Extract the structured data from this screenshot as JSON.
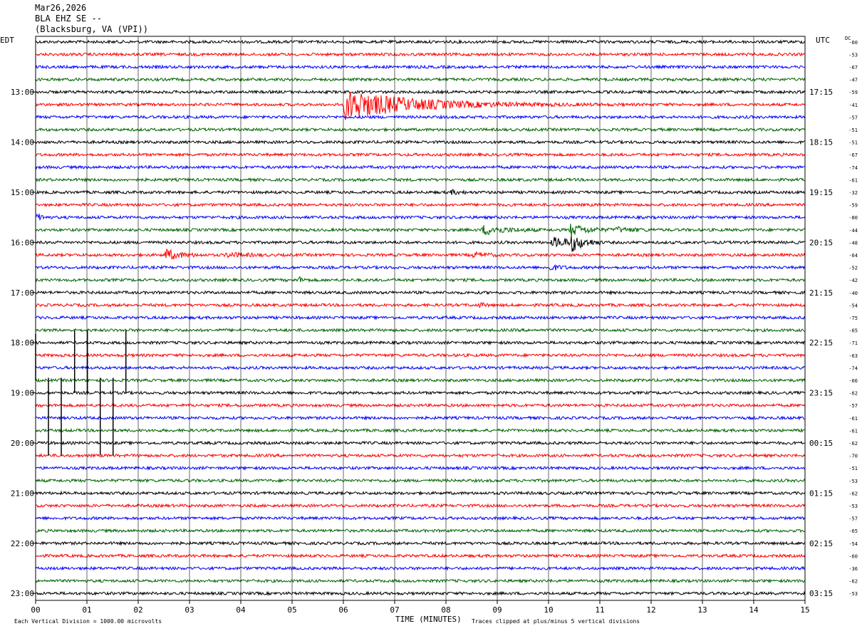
{
  "header": {
    "date": "Mar26,2026",
    "station": "BLA EHZ SE --",
    "location": "(Blacksburg, VA (VPI))"
  },
  "left_tz": "EDT",
  "right_tz": "UTC",
  "dc_label": "DC",
  "footer": {
    "scale_note": "Each Vertical Division = 1000.00 microvolts",
    "xlabel": "TIME (MINUTES)",
    "clip_note": "Traces clipped at plus/minus 5 vertical divisions"
  },
  "colors": {
    "trace_cycle": [
      "#000000",
      "#ff0000",
      "#0000ff",
      "#006400"
    ],
    "grid": "#000000"
  },
  "chart_data": {
    "type": "line",
    "title": "",
    "xlabel": "TIME (MINUTES)",
    "xlim": [
      0,
      15
    ],
    "x_ticks": [
      "00",
      "01",
      "02",
      "03",
      "04",
      "05",
      "06",
      "07",
      "08",
      "09",
      "10",
      "11",
      "12",
      "13",
      "14",
      "15"
    ],
    "rows_per_hour": 4,
    "left_hour_labels": [
      "13:00",
      "14:00",
      "15:00",
      "16:00",
      "17:00",
      "18:00",
      "19:00",
      "20:00",
      "21:00",
      "22:00",
      "23:00"
    ],
    "left_hour_label_rows": [
      4,
      8,
      12,
      16,
      20,
      24,
      28,
      32,
      36,
      40,
      44
    ],
    "right_hour_labels": [
      "17:15",
      "18:15",
      "19:15",
      "20:15",
      "21:15",
      "22:15",
      "23:15",
      "00:15",
      "01:15",
      "02:15",
      "03:15"
    ],
    "right_hour_label_rows": [
      4,
      8,
      12,
      16,
      20,
      24,
      28,
      32,
      36,
      40,
      44
    ],
    "dc_offsets": [
      -60,
      -53,
      -67,
      -47,
      -59,
      -41,
      -57,
      -51,
      -51,
      -67,
      -74,
      -61,
      -32,
      -59,
      -80,
      -44,
      -48,
      -64,
      -52,
      -42,
      -40,
      -54,
      -75,
      -65,
      -71,
      -63,
      -74,
      -66,
      -62,
      -57,
      -61,
      -61,
      -62,
      -70,
      -51,
      -53,
      -62,
      -53,
      -57,
      -65,
      -54,
      -60,
      -36,
      -62,
      -53
    ],
    "noise_level": 2.0,
    "events": [
      {
        "row": 5,
        "start": 6.0,
        "duration": 5.5,
        "amplitude": 22,
        "decay": 1.2
      },
      {
        "row": 12,
        "start": 8.05,
        "duration": 0.4,
        "amplitude": 3,
        "decay": 0.2
      },
      {
        "row": 14,
        "start": 0.0,
        "duration": 0.3,
        "amplitude": 5,
        "decay": 0.15
      },
      {
        "row": 15,
        "start": 8.7,
        "duration": 1.2,
        "amplitude": 7,
        "decay": 0.4
      },
      {
        "row": 15,
        "start": 10.4,
        "duration": 1.0,
        "amplitude": 9,
        "decay": 0.3
      },
      {
        "row": 15,
        "start": 11.3,
        "duration": 0.8,
        "amplitude": 3,
        "decay": 0.4
      },
      {
        "row": 16,
        "start": 10.05,
        "duration": 1.0,
        "amplitude": 7,
        "decay": 0.5
      },
      {
        "row": 16,
        "start": 10.4,
        "duration": 0.6,
        "amplitude": 12,
        "decay": 0.2
      },
      {
        "row": 17,
        "start": 2.5,
        "duration": 0.8,
        "amplitude": 9,
        "decay": 0.25
      },
      {
        "row": 17,
        "start": 3.7,
        "duration": 0.8,
        "amplitude": 3,
        "decay": 0.4
      },
      {
        "row": 17,
        "start": 8.5,
        "duration": 0.6,
        "amplitude": 3,
        "decay": 0.3
      },
      {
        "row": 18,
        "start": 10.0,
        "duration": 0.5,
        "amplitude": 4,
        "decay": 0.2
      },
      {
        "row": 19,
        "start": 5.1,
        "duration": 0.25,
        "amplitude": 5,
        "decay": 0.1
      },
      {
        "row": 21,
        "start": 8.6,
        "duration": 0.3,
        "amplitude": 3,
        "decay": 0.15
      }
    ],
    "spikes": [
      {
        "x": 0.0,
        "from_row": 23.3,
        "to_row": 27.0
      },
      {
        "x": 0.25,
        "from_row": 26.8,
        "to_row": 33.0
      },
      {
        "x": 0.5,
        "from_row": 26.8,
        "to_row": 33.0
      },
      {
        "x": 0.76,
        "from_row": 23.0,
        "to_row": 28.0
      },
      {
        "x": 1.01,
        "from_row": 23.0,
        "to_row": 28.0
      },
      {
        "x": 1.26,
        "from_row": 26.8,
        "to_row": 33.0
      },
      {
        "x": 1.51,
        "from_row": 26.8,
        "to_row": 33.0
      },
      {
        "x": 1.76,
        "from_row": 23.0,
        "to_row": 28.0
      }
    ]
  }
}
